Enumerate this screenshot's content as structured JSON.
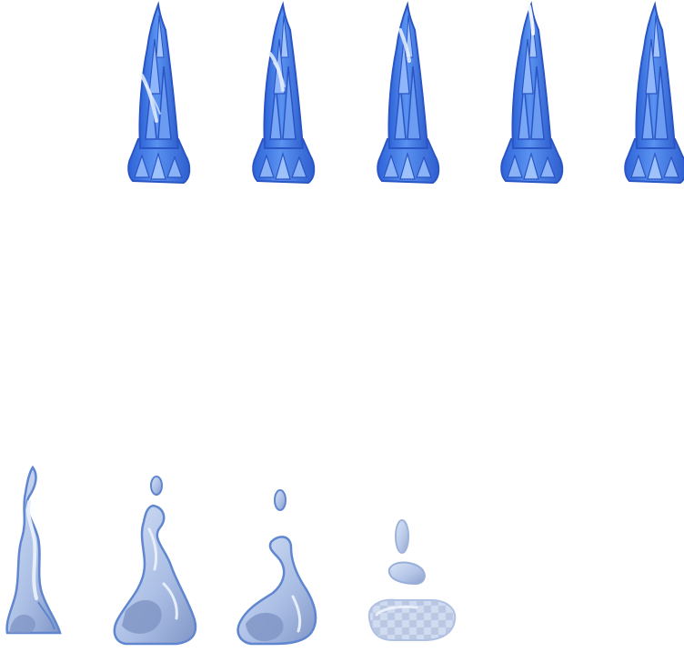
{
  "sheet": {
    "background": "#ffffff",
    "palette": {
      "ice_dark": "#2e63d8",
      "ice_mid": "#4f86ec",
      "ice_light": "#9cc1fb",
      "ice_highlight": "#e8f1ff",
      "water_outline": "#5f86cf",
      "water_dark": "#8196c6",
      "water_mid": "#a9bde4",
      "water_light": "#d5e2f7",
      "water_pale": "#b9c9e6",
      "checker": "#c8d4ea"
    },
    "rows": [
      {
        "name": "ice-spire-row",
        "frames": [
          {
            "name": "ice-spire-frame-1",
            "icon": "ice-spire-icon"
          },
          {
            "name": "ice-spire-frame-2",
            "icon": "ice-spire-icon"
          },
          {
            "name": "ice-spire-frame-3",
            "icon": "ice-spire-icon"
          },
          {
            "name": "ice-spire-frame-4",
            "icon": "ice-spire-icon"
          },
          {
            "name": "ice-spire-frame-5",
            "icon": "ice-spire-icon"
          }
        ]
      },
      {
        "name": "melting-water-row",
        "frames": [
          {
            "name": "melt-frame-1",
            "icon": "water-plume-icon"
          },
          {
            "name": "melt-frame-2",
            "icon": "water-swirl-icon"
          },
          {
            "name": "melt-frame-3",
            "icon": "water-swirl-small-icon"
          },
          {
            "name": "melt-frame-4",
            "icon": "water-puddle-icon"
          }
        ]
      }
    ]
  }
}
